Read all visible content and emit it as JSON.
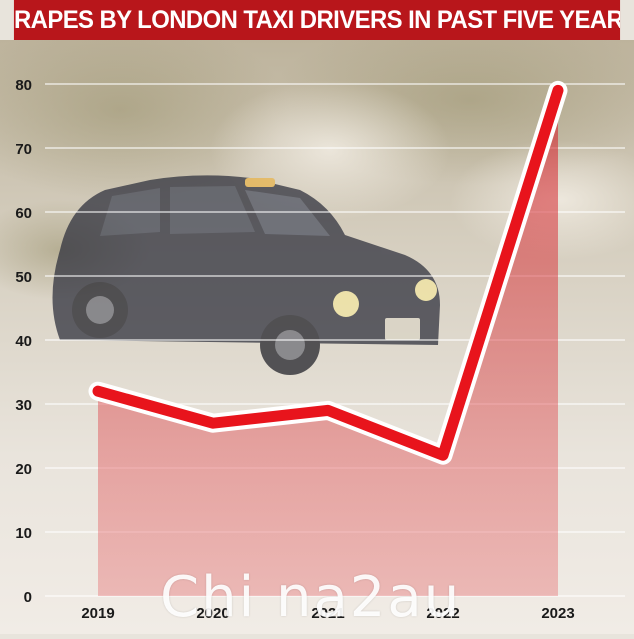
{
  "chart_data": {
    "type": "line",
    "title": "RAPES BY LONDON TAXI DRIVERS IN PAST FIVE YEARS",
    "categories": [
      "2019",
      "2020",
      "2021",
      "2022",
      "2023"
    ],
    "series": [
      {
        "values": [
          32,
          27,
          29,
          22,
          79
        ]
      }
    ],
    "yticks": [
      "0",
      "10",
      "20",
      "30",
      "40",
      "50",
      "60",
      "70",
      "80"
    ],
    "ylim": [
      0,
      85
    ],
    "grid": true,
    "line_color": "#e8141c",
    "area_color": "#d9333a",
    "title_bg": "#b8161b"
  },
  "watermark": "Chi na2au"
}
